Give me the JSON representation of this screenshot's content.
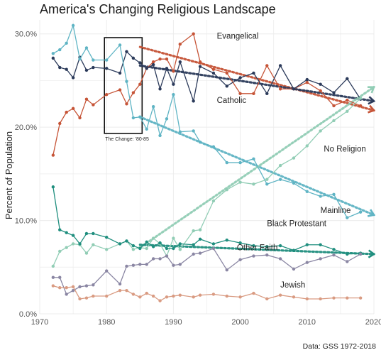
{
  "chart_data": {
    "type": "line",
    "title": "America's Changing Religious Landscape",
    "ylabel": "Percent of Population",
    "xlabel": "",
    "caption": "Data: GSS 1972-2018",
    "xlim": [
      1970,
      2020
    ],
    "ylim": [
      0,
      31.5
    ],
    "x_ticks": [
      "1970",
      "1980",
      "1990",
      "2000",
      "2010",
      "2020"
    ],
    "y_ticks": [
      "0.0%",
      "10.0%",
      "20.0%",
      "30.0%"
    ],
    "grid": true,
    "annotation": {
      "label": "The Change: '80-85",
      "x_range": [
        1980,
        1985
      ]
    },
    "years": [
      1972,
      1973,
      1974,
      1975,
      1976,
      1977,
      1978,
      1980,
      1982,
      1983,
      1984,
      1985,
      1986,
      1987,
      1988,
      1989,
      1990,
      1991,
      1993,
      1994,
      1996,
      1998,
      2000,
      2002,
      2004,
      2006,
      2008,
      2010,
      2012,
      2014,
      2016,
      2018
    ],
    "series": [
      {
        "name": "Evangelical",
        "color": "#c65437",
        "values": [
          17.0,
          20.4,
          21.6,
          22.0,
          21.0,
          23.0,
          22.4,
          23.5,
          24.0,
          22.5,
          23.7,
          24.6,
          26.3,
          27.0,
          27.3,
          27.3,
          26.0,
          28.9,
          30.0,
          27.0,
          26.2,
          25.8,
          23.6,
          23.6,
          26.6,
          24.1,
          24.1,
          24.8,
          23.9,
          22.3,
          22.9,
          22.3
        ],
        "trend": {
          "from": [
            1985,
            28.6
          ],
          "to": [
            2020,
            21.8
          ]
        }
      },
      {
        "name": "Catholic",
        "color": "#2b3a5a",
        "values": [
          27.4,
          26.4,
          26.2,
          25.3,
          27.5,
          26.1,
          26.4,
          26.3,
          25.8,
          28.1,
          27.4,
          26.9,
          26.3,
          26.7,
          24.1,
          26.3,
          24.6,
          27.0,
          22.8,
          26.5,
          25.8,
          24.4,
          25.3,
          25.8,
          23.6,
          26.6,
          24.1,
          25.1,
          24.6,
          23.7,
          25.2,
          23.0
        ],
        "trend": {
          "from": [
            1985,
            26.6
          ],
          "to": [
            2020,
            22.8
          ]
        }
      },
      {
        "name": "Mainline",
        "color": "#5fb4c4",
        "values": [
          27.9,
          28.3,
          29.0,
          30.9,
          27.3,
          28.5,
          27.2,
          27.2,
          28.8,
          24.9,
          21.0,
          21.1,
          19.8,
          22.2,
          19.1,
          20.9,
          23.5,
          19.5,
          19.6,
          18.4,
          17.9,
          16.2,
          16.2,
          16.6,
          13.9,
          14.4,
          14.0,
          13.1,
          12.6,
          12.8,
          10.3,
          10.9
        ],
        "trend": {
          "from": [
            1985,
            21.1
          ],
          "to": [
            2020,
            10.6
          ]
        }
      },
      {
        "name": "No Religion",
        "color": "#91cdb5",
        "values": [
          5.1,
          6.7,
          7.1,
          7.5,
          7.4,
          6.5,
          7.4,
          6.9,
          7.5,
          7.8,
          6.9,
          7.1,
          7.0,
          8.1,
          7.5,
          6.2,
          8.1,
          6.9,
          8.9,
          9.0,
          12.1,
          13.3,
          14.1,
          13.9,
          14.4,
          15.9,
          16.7,
          18.0,
          19.6,
          20.7,
          21.7,
          23.1
        ],
        "trend": {
          "from": [
            1985,
            7.1
          ],
          "to": [
            2020,
            24.3
          ]
        }
      },
      {
        "name": "Black Protestant",
        "color": "#1f8e7e",
        "values": [
          13.6,
          9.0,
          8.7,
          8.4,
          7.5,
          8.6,
          8.6,
          8.2,
          7.5,
          7.8,
          7.3,
          7.0,
          7.7,
          7.2,
          7.6,
          7.0,
          7.0,
          7.5,
          7.4,
          8.0,
          7.5,
          7.9,
          7.6,
          7.3,
          7.2,
          7.3,
          6.8,
          7.4,
          7.4,
          6.9,
          6.4,
          6.5
        ],
        "trend": {
          "from": [
            1985,
            7.4
          ],
          "to": [
            2020,
            6.4
          ]
        }
      },
      {
        "name": "Other Faith",
        "color": "#8a86a3",
        "values": [
          3.9,
          3.9,
          2.1,
          2.5,
          2.9,
          3.0,
          3.1,
          4.6,
          3.2,
          5.1,
          5.2,
          5.3,
          5.3,
          5.9,
          5.9,
          6.2,
          5.2,
          5.3,
          6.4,
          6.5,
          7.0,
          4.7,
          5.8,
          6.2,
          6.3,
          5.9,
          4.8,
          5.5,
          5.9,
          6.3,
          5.6,
          6.4
        ],
        "trend": null
      },
      {
        "name": "Jewish",
        "color": "#d99b82",
        "values": [
          3.0,
          2.8,
          2.8,
          2.9,
          1.6,
          1.7,
          1.9,
          1.9,
          2.5,
          2.5,
          2.1,
          1.8,
          2.2,
          1.9,
          1.4,
          1.8,
          1.9,
          2.0,
          1.8,
          2.0,
          2.1,
          1.9,
          1.8,
          2.2,
          1.6,
          2.0,
          1.8,
          1.6,
          1.6,
          1.7,
          1.7,
          1.7
        ],
        "trend": null
      }
    ],
    "series_labels": [
      {
        "text": "Evangelical",
        "x": 1996.5,
        "y": 29.5
      },
      {
        "text": "Catholic",
        "x": 1996.5,
        "y": 22.6
      },
      {
        "text": "No Religion",
        "x": 2012.5,
        "y": 17.4
      },
      {
        "text": "Mainline",
        "x": 2012.0,
        "y": 10.8
      },
      {
        "text": "Black Protestant",
        "x": 2004.0,
        "y": 9.4
      },
      {
        "text": "Other Faith",
        "x": 1999.5,
        "y": 6.8
      },
      {
        "text": "Jewish",
        "x": 2006.0,
        "y": 2.8
      }
    ]
  }
}
